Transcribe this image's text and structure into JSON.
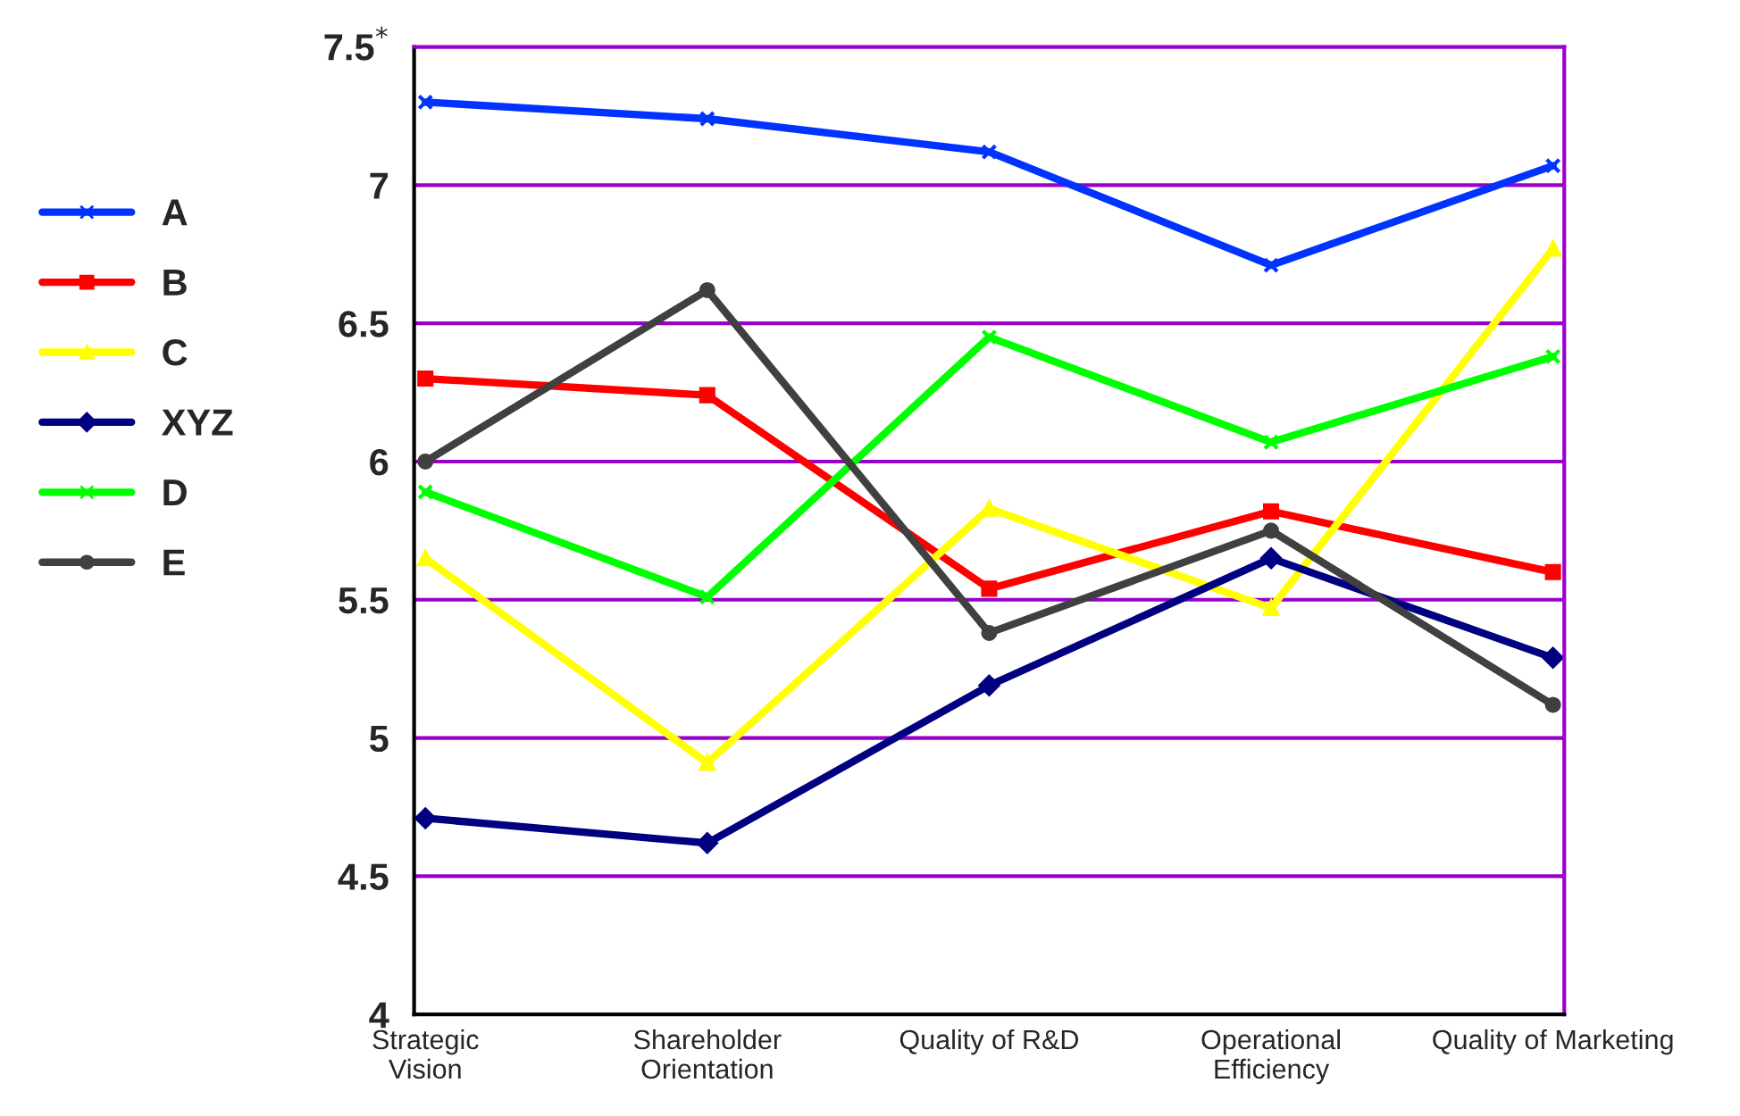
{
  "chart_data": {
    "type": "line",
    "categories": [
      "Strategic\nVision",
      "Shareholder\nOrientation",
      "Quality of R&D",
      "Operational\nEfficiency",
      "Quality of Marketing"
    ],
    "series": [
      {
        "name": "A",
        "color": "#0033ff",
        "marker": "cross",
        "values": [
          7.3,
          7.24,
          7.12,
          6.71,
          7.07
        ]
      },
      {
        "name": "B",
        "color": "#ff0000",
        "marker": "square",
        "values": [
          6.3,
          6.24,
          5.54,
          5.82,
          5.6
        ]
      },
      {
        "name": "C",
        "color": "#ffff00",
        "marker": "triangle",
        "values": [
          5.65,
          4.91,
          5.83,
          5.47,
          6.77
        ]
      },
      {
        "name": "XYZ",
        "color": "#000080",
        "marker": "diamond",
        "values": [
          4.71,
          4.62,
          5.19,
          5.65,
          5.29
        ]
      },
      {
        "name": "D",
        "color": "#00ff00",
        "marker": "cross",
        "values": [
          5.89,
          5.51,
          6.45,
          6.07,
          6.38
        ]
      },
      {
        "name": "E",
        "color": "#404040",
        "marker": "circle",
        "values": [
          6.0,
          6.62,
          5.38,
          5.75,
          5.12
        ]
      }
    ],
    "ylim": [
      4,
      7.5
    ],
    "yticks": [
      4,
      4.5,
      5,
      5.5,
      6,
      6.5,
      7,
      {
        "value": 7.5,
        "label": "7.5$^{*}$"
      }
    ],
    "grid": "y",
    "legend": "left",
    "line_style": "solid"
  }
}
